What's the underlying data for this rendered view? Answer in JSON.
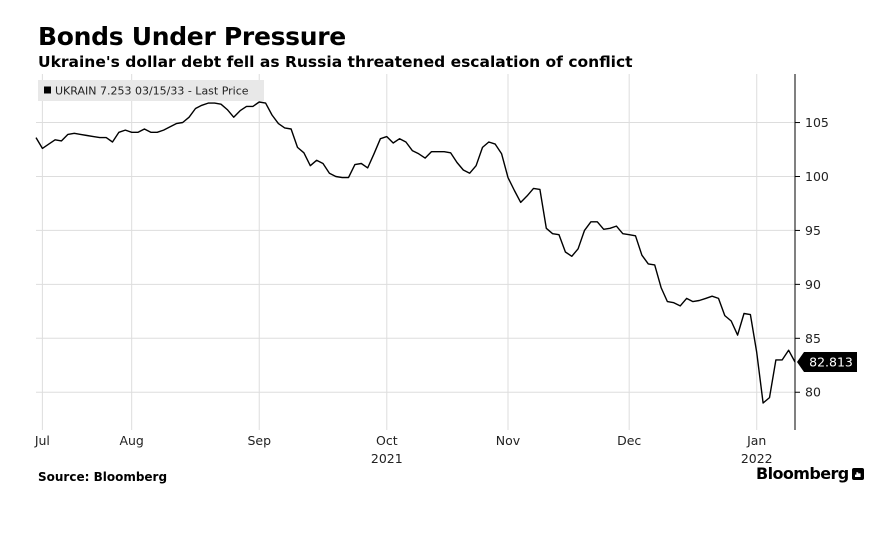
{
  "header": {
    "title": "Bonds Under Pressure",
    "subtitle": "Ukraine's dollar debt fell as Russia threatened escalation of conflict"
  },
  "footer": {
    "source": "Source: Bloomberg",
    "brand": "Bloomberg"
  },
  "colors": {
    "line": "#000000",
    "grid": "#dddddd",
    "legend_bg": "#e8e8e8",
    "label_bg": "#000000"
  },
  "chart_data": {
    "type": "line",
    "title": "Bonds Under Pressure",
    "subtitle": "Ukraine's dollar debt fell as Russia threatened escalation of conflict",
    "xlabel": "",
    "ylabel": "",
    "ylim": [
      76.5,
      109.5
    ],
    "y_ticks": [
      80,
      85,
      90,
      95,
      100,
      105
    ],
    "y_axis_side": "right",
    "x_ticks": [
      {
        "label": "Jul",
        "x": 1
      },
      {
        "label": "Aug",
        "x": 15
      },
      {
        "label": "Sep",
        "x": 35
      },
      {
        "label": "Oct",
        "x": 55
      },
      {
        "label": "Nov",
        "x": 74
      },
      {
        "label": "Dec",
        "x": 93
      },
      {
        "label": "Jan",
        "x": 113
      }
    ],
    "year_labels": [
      {
        "label": "2021",
        "x": 55
      },
      {
        "label": "2022",
        "x": 113
      }
    ],
    "x_range": [
      0,
      119
    ],
    "grid": true,
    "legend": {
      "label": "UKRAIN 7.253 03/15/33 - Last Price",
      "placement": "top-left"
    },
    "last_value_label": "82.813",
    "series": [
      {
        "name": "UKRAIN 7.253 03/15/33 - Last Price",
        "x": [
          0,
          1,
          2,
          3,
          4,
          5,
          6,
          7,
          8,
          9,
          10,
          11,
          12,
          13,
          14,
          15,
          16,
          17,
          18,
          19,
          20,
          21,
          22,
          23,
          24,
          25,
          26,
          27,
          28,
          29,
          30,
          31,
          32,
          33,
          34,
          35,
          36,
          37,
          38,
          39,
          40,
          41,
          42,
          43,
          44,
          45,
          46,
          47,
          48,
          49,
          50,
          51,
          52,
          53,
          54,
          55,
          56,
          57,
          58,
          59,
          60,
          61,
          62,
          63,
          64,
          65,
          66,
          67,
          68,
          69,
          70,
          71,
          72,
          73,
          74,
          75,
          76,
          77,
          78,
          79,
          80,
          81,
          82,
          83,
          84,
          85,
          86,
          87,
          88,
          89,
          90,
          91,
          92,
          93,
          94,
          95,
          96,
          97,
          98,
          99,
          100,
          101,
          102,
          103,
          104,
          105,
          106,
          107,
          108,
          109,
          110,
          111,
          112,
          113,
          114,
          115,
          116,
          117,
          118,
          119
        ],
        "values": [
          103.6,
          102.6,
          103.0,
          103.4,
          103.3,
          103.9,
          104.0,
          103.9,
          103.8,
          103.7,
          103.6,
          103.6,
          103.2,
          104.1,
          104.3,
          104.1,
          104.1,
          104.4,
          104.1,
          104.1,
          104.3,
          104.6,
          104.9,
          105.0,
          105.5,
          106.3,
          106.6,
          106.8,
          106.8,
          106.7,
          106.2,
          105.5,
          106.1,
          106.5,
          106.5,
          106.9,
          106.8,
          105.7,
          104.9,
          104.5,
          104.4,
          102.7,
          102.2,
          101.0,
          101.5,
          101.2,
          100.3,
          100.0,
          99.9,
          99.9,
          101.1,
          101.2,
          100.8,
          102.1,
          103.5,
          103.7,
          103.1,
          103.5,
          103.2,
          102.4,
          102.1,
          101.7,
          102.3,
          102.3,
          102.3,
          102.2,
          101.3,
          100.6,
          100.3,
          101.0,
          102.7,
          103.2,
          103.0,
          102.1,
          99.9,
          98.7,
          97.6,
          98.2,
          98.9,
          98.8,
          95.2,
          94.7,
          94.6,
          93.0,
          92.6,
          93.3,
          95.0,
          95.8,
          95.8,
          95.1,
          95.2,
          95.4,
          94.7,
          94.6,
          94.5,
          92.7,
          91.9,
          91.8,
          89.7,
          88.4,
          88.3,
          88.0,
          88.7,
          88.4,
          88.5,
          88.7,
          88.9,
          88.7,
          87.1,
          86.6,
          85.3,
          87.3,
          87.2,
          83.7,
          79.0,
          79.5,
          83.0,
          83.0,
          83.9,
          82.8
        ]
      }
    ]
  }
}
